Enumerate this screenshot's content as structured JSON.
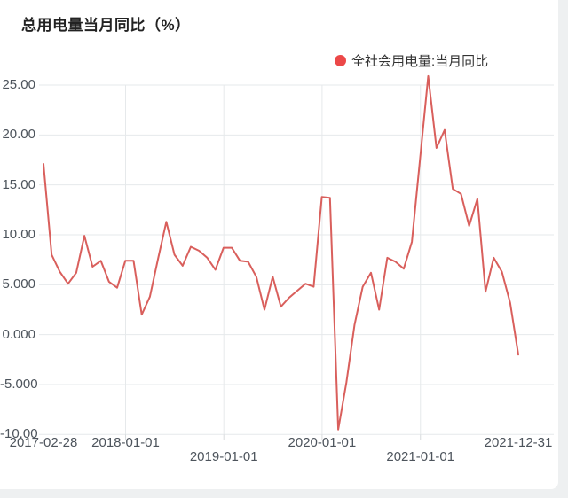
{
  "page": {
    "title": "总用电量当月同比（%）"
  },
  "legend": {
    "label": "全社会用电量:当月同比",
    "dot_color": "#ec4848"
  },
  "chart_data": {
    "type": "line",
    "title": "总用电量当月同比（%）",
    "series_name": "全社会用电量:当月同比",
    "line_color": "#d95f5c",
    "grid": true,
    "legend_position": "top-right",
    "ylim": [
      -10,
      25
    ],
    "y_ticks": [
      "25.00",
      "20.00",
      "15.00",
      "10.00",
      "5.000",
      "0.000",
      "-5.000",
      "-10.00"
    ],
    "y_tick_values": [
      25,
      20,
      15,
      10,
      5,
      0,
      -5,
      -10
    ],
    "x_ticks": [
      {
        "label": "2017-02-28",
        "mi": 0,
        "row": 0,
        "gridline": false
      },
      {
        "label": "2018-01-01",
        "mi": 10.03,
        "row": 0,
        "gridline": true
      },
      {
        "label": "2019-01-01",
        "mi": 22.03,
        "row": 1,
        "gridline": true
      },
      {
        "label": "2020-01-01",
        "mi": 34.03,
        "row": 0,
        "gridline": true
      },
      {
        "label": "2021-01-01",
        "mi": 46.05,
        "row": 1,
        "gridline": true
      },
      {
        "label": "2021-12-31",
        "mi": 58,
        "row": 0,
        "gridline": false
      }
    ],
    "x": [
      "2017-02",
      "2017-03",
      "2017-04",
      "2017-05",
      "2017-06",
      "2017-07",
      "2017-08",
      "2017-09",
      "2017-10",
      "2017-11",
      "2017-12",
      "2018-01",
      "2018-02",
      "2018-03",
      "2018-04",
      "2018-05",
      "2018-06",
      "2018-07",
      "2018-08",
      "2018-09",
      "2018-10",
      "2018-11",
      "2018-12",
      "2019-01",
      "2019-02",
      "2019-03",
      "2019-04",
      "2019-05",
      "2019-06",
      "2019-07",
      "2019-08",
      "2019-09",
      "2019-10",
      "2019-11",
      "2019-12",
      "2020-01",
      "2020-02",
      "2020-03",
      "2020-04",
      "2020-05",
      "2020-06",
      "2020-07",
      "2020-08",
      "2020-09",
      "2020-10",
      "2020-11",
      "2020-12",
      "2021-01",
      "2021-02",
      "2021-03",
      "2021-04",
      "2021-05",
      "2021-06",
      "2021-07",
      "2021-08",
      "2021-09",
      "2021-10",
      "2021-11",
      "2021-12"
    ],
    "values": [
      17.1,
      8.0,
      6.3,
      5.1,
      6.2,
      9.9,
      6.8,
      7.4,
      5.3,
      4.7,
      7.4,
      7.4,
      2.0,
      3.8,
      7.6,
      11.3,
      8.0,
      6.9,
      8.8,
      8.4,
      7.7,
      6.5,
      8.7,
      8.7,
      7.4,
      7.3,
      5.8,
      2.5,
      5.8,
      2.8,
      3.7,
      4.4,
      5.1,
      4.8,
      13.8,
      13.7,
      -9.5,
      -4.8,
      1.0,
      4.8,
      6.2,
      2.5,
      7.7,
      7.3,
      6.6,
      9.3,
      17.6,
      25.9,
      18.7,
      20.5,
      14.6,
      14.1,
      10.9,
      13.6,
      4.3,
      7.7,
      6.3,
      3.2,
      -2.0
    ]
  }
}
